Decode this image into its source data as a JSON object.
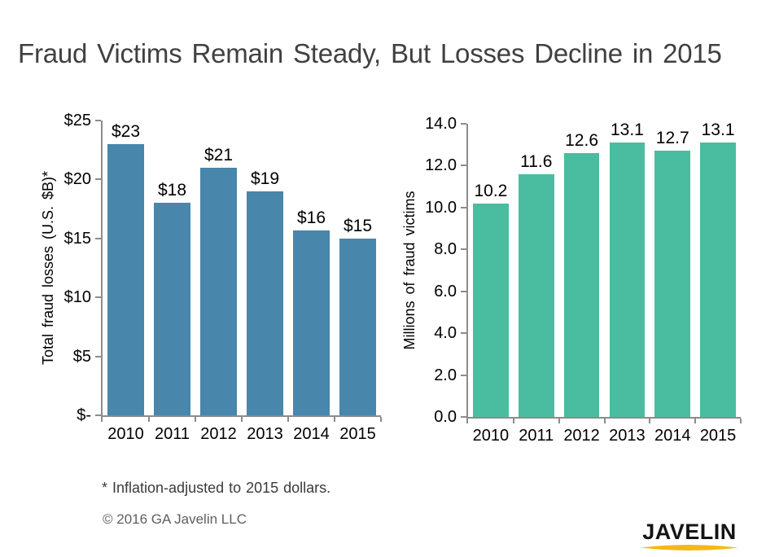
{
  "page": {
    "title": "Fraud Victims Remain Steady, But Losses Decline in 2015",
    "footnote": "* Inflation-adjusted to 2015 dollars.",
    "copyright": "© 2016 GA Javelin LLC"
  },
  "logo": {
    "text": "JAVELIN",
    "underline_color": "#F7B718"
  },
  "colors": {
    "background": "#FFFFFF",
    "title_text": "#404040",
    "axis_line": "#8C8C8C",
    "losses_bar": "#4886AC",
    "victims_bar": "#4ABDA0",
    "footnote_text": "#3A3A3A",
    "copyright_text": "#5F5F5F",
    "logo_text": "#141414"
  },
  "chart_data": [
    {
      "type": "bar",
      "name": "total-fraud-losses",
      "title": "",
      "xlabel": "",
      "ylabel": "Total fraud losses (U.S. $B)*",
      "categories": [
        "2010",
        "2011",
        "2012",
        "2013",
        "2014",
        "2015"
      ],
      "values": [
        23,
        18,
        21,
        19,
        15.7,
        15
      ],
      "bar_labels": [
        "$23",
        "$18",
        "$21",
        "$19",
        "$16",
        "$15"
      ],
      "ylim": [
        0,
        25
      ],
      "yticks": [
        {
          "value": 25,
          "label": "$25"
        },
        {
          "value": 20,
          "label": "$20"
        },
        {
          "value": 15,
          "label": "$15"
        },
        {
          "value": 10,
          "label": "$10"
        },
        {
          "value": 5,
          "label": "$5"
        },
        {
          "value": 0,
          "label": "$-"
        }
      ],
      "grid": false,
      "legend": "none",
      "bar_color": "#4886AC"
    },
    {
      "type": "bar",
      "name": "millions-of-fraud-victims",
      "title": "",
      "xlabel": "",
      "ylabel": "Millions of fraud victims",
      "categories": [
        "2010",
        "2011",
        "2012",
        "2013",
        "2014",
        "2015"
      ],
      "values": [
        10.2,
        11.6,
        12.6,
        13.1,
        12.7,
        13.1
      ],
      "bar_labels": [
        "10.2",
        "11.6",
        "12.6",
        "13.1",
        "12.7",
        "13.1"
      ],
      "ylim": [
        0,
        14
      ],
      "yticks": [
        {
          "value": 14,
          "label": "14.0"
        },
        {
          "value": 12,
          "label": "12.0"
        },
        {
          "value": 10,
          "label": "10.0"
        },
        {
          "value": 8,
          "label": "8.0"
        },
        {
          "value": 6,
          "label": "6.0"
        },
        {
          "value": 4,
          "label": "4.0"
        },
        {
          "value": 2,
          "label": "2.0"
        },
        {
          "value": 0,
          "label": "0.0"
        }
      ],
      "grid": false,
      "legend": "none",
      "bar_color": "#4ABDA0"
    }
  ]
}
